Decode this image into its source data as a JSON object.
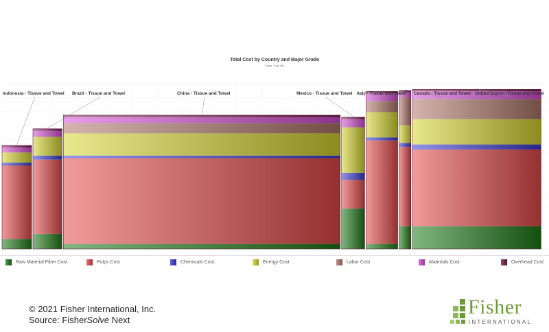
{
  "chart_data": {
    "type": "bar",
    "subtype": "variable-width stacked bar (Marimekko-style)",
    "title": "Total Cost by Country and Major Grade",
    "subtitle": "Stage: Total Mill",
    "categories": [
      "Indonesia - Tissue and Towel",
      "Brazil - Tissue and Towel",
      "China - Tissue and Towel",
      "Mexico - Tissue and Towel",
      "Italy - Tissue and Towel",
      "Canada - Tissue and Towel",
      "United States - Tissue and Towel"
    ],
    "capacity_share": [
      0.055,
      0.054,
      0.516,
      0.043,
      0.059,
      0.022,
      0.24
    ],
    "series": [
      {
        "name": "Raw Material Fiber Cost",
        "color": "#1e7a18",
        "values": [
          20,
          30,
          10,
          80,
          10,
          45,
          45
        ]
      },
      {
        "name": "Pulps Cost",
        "color": "#e44a4a",
        "values": [
          145,
          147,
          170,
          57,
          205,
          157,
          152
        ]
      },
      {
        "name": "Chemicals Cost",
        "color": "#3a3ad6",
        "values": [
          6,
          8,
          5,
          14,
          6,
          8,
          10
        ]
      },
      {
        "name": "Energy Cost",
        "color": "#d6d630",
        "values": [
          20,
          37,
          44,
          90,
          50,
          35,
          50
        ]
      },
      {
        "name": "Labor Cost",
        "color": "#b0786a",
        "values": [
          0,
          0,
          20,
          0,
          22,
          55,
          40
        ]
      },
      {
        "name": "Materials Cost",
        "color": "#d64ed6",
        "values": [
          10,
          12,
          12,
          16,
          15,
          10,
          15
        ]
      },
      {
        "name": "Overhead Cost",
        "color": "#7a1a4a",
        "values": [
          4,
          4,
          4,
          4,
          4,
          4,
          4
        ]
      }
    ],
    "ylim": [
      0,
      330
    ],
    "grid": true,
    "legend_position": "bottom"
  },
  "footer": {
    "copyright": "© 2021 Fisher International, Inc.",
    "source_prefix": "Source: Fisher",
    "source_italic": "Solve",
    "source_suffix": " Next"
  },
  "logo": {
    "word": "Fisher",
    "sub": "INTERNATIONAL"
  }
}
